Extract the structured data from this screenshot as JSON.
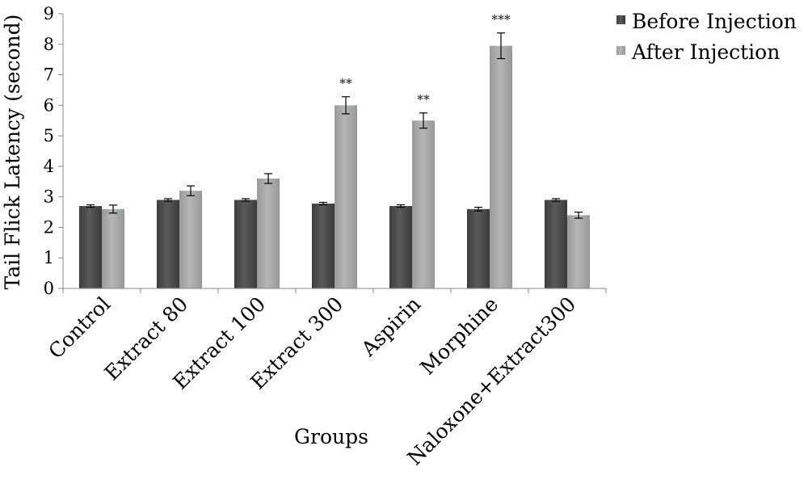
{
  "chart_data": {
    "type": "bar",
    "title": "",
    "xlabel": "Groups",
    "ylabel": "Tail Flick Latency (second)",
    "ylim": [
      0,
      9
    ],
    "yticks": [
      0,
      1,
      2,
      3,
      4,
      5,
      6,
      7,
      8,
      9
    ],
    "grid": false,
    "legend_position": "top-right",
    "categories": [
      "Control",
      "Extract 80",
      "Extract 100",
      "Extract 300",
      "Aspirin",
      "Morphine",
      "Naloxone+Extract300"
    ],
    "series": [
      {
        "name": "Before Injection",
        "color": "#4d4d4d",
        "values": [
          2.7,
          2.9,
          2.9,
          2.78,
          2.7,
          2.6,
          2.9
        ],
        "errors": [
          0.04,
          0.04,
          0.04,
          0.04,
          0.04,
          0.06,
          0.04
        ],
        "annotations": [
          "",
          "",
          "",
          "",
          "",
          "",
          ""
        ]
      },
      {
        "name": "After Injection",
        "color": "#a6a8a8",
        "values": [
          2.6,
          3.2,
          3.6,
          6.0,
          5.5,
          7.95,
          2.4
        ],
        "errors": [
          0.13,
          0.16,
          0.16,
          0.28,
          0.25,
          0.42,
          0.1
        ],
        "annotations": [
          "",
          "",
          "",
          "**",
          "**",
          "***",
          ""
        ]
      }
    ]
  }
}
